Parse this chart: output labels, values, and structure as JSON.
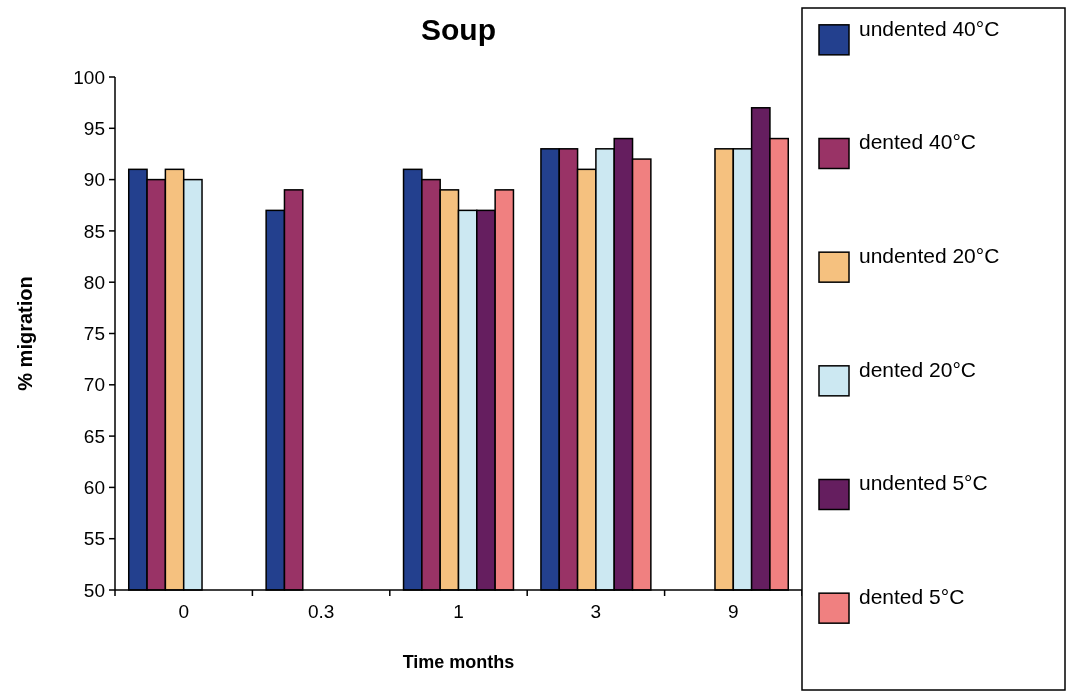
{
  "chart_data": {
    "type": "bar",
    "title": "Soup",
    "xlabel": "Time months",
    "ylabel": "% migration",
    "categories": [
      "0",
      "0.3",
      "1",
      "3",
      "9"
    ],
    "series": [
      {
        "name": "undented 40°C",
        "color": "#23408e",
        "values": [
          91,
          87,
          91,
          93,
          null
        ]
      },
      {
        "name": "dented 40°C",
        "color": "#993366",
        "values": [
          90,
          89,
          90,
          93,
          null
        ]
      },
      {
        "name": "undented 20°C",
        "color": "#f5c17f",
        "values": [
          91,
          null,
          89,
          91,
          93
        ]
      },
      {
        "name": "dented 20°C",
        "color": "#cce8f2",
        "values": [
          90,
          null,
          87,
          93,
          93
        ]
      },
      {
        "name": "undented 5°C",
        "color": "#651e5f",
        "values": [
          null,
          null,
          87,
          94,
          97
        ]
      },
      {
        "name": "dented 5°C",
        "color": "#f08080",
        "values": [
          null,
          null,
          89,
          92,
          94
        ]
      }
    ],
    "ylim": [
      50,
      100
    ],
    "yticks": [
      50,
      55,
      60,
      65,
      70,
      75,
      80,
      85,
      90,
      95,
      100
    ],
    "legend": "right"
  }
}
